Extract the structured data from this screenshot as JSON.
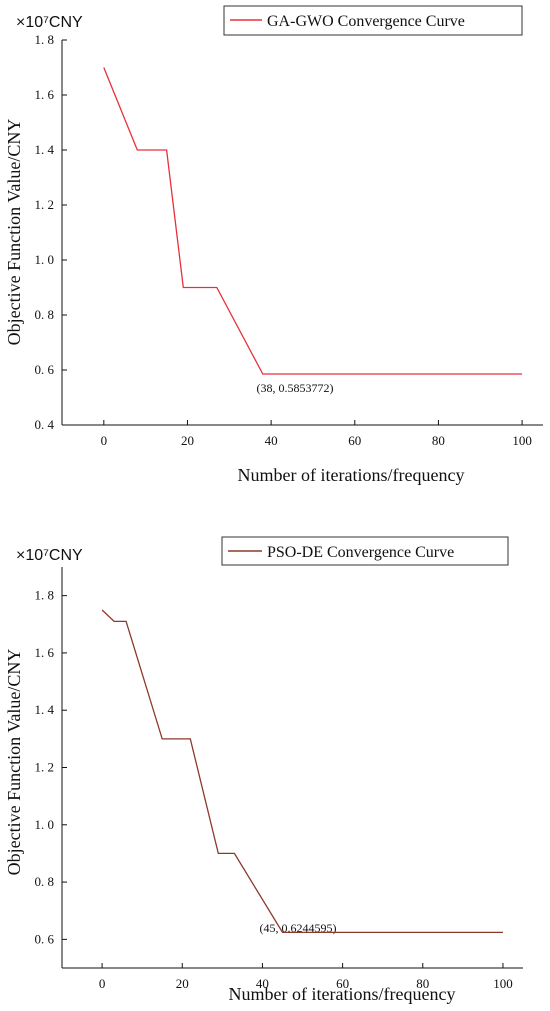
{
  "chart_data": [
    {
      "type": "line",
      "unit_label": "×10⁷CNY",
      "legend": "GA-GWO Convergence Curve",
      "series_color": "#e8303a",
      "xlabel": "Number of iterations/frequency",
      "ylabel": "Objective Function Value/CNY",
      "xlim": [
        -10,
        105
      ],
      "ylim": [
        0.4,
        1.8
      ],
      "x_ticks": [
        0,
        20,
        40,
        60,
        80,
        100
      ],
      "x_tick_labels": [
        "0",
        "20",
        "40",
        "60",
        "80",
        "100"
      ],
      "y_ticks": [
        0.4,
        0.6,
        0.8,
        1.0,
        1.2,
        1.4,
        1.6,
        1.8
      ],
      "y_tick_labels": [
        "0. 4",
        "0. 6",
        "0. 8",
        "1. 0",
        "1. 2",
        "1. 4",
        "1. 6",
        "1. 8"
      ],
      "series": [
        {
          "name": "GA-GWO Convergence Curve",
          "x": [
            0,
            8,
            15,
            19,
            27,
            38,
            100
          ],
          "y": [
            1.7,
            1.4,
            1.4,
            0.9,
            0.9,
            0.5853772,
            0.5853772
          ]
        }
      ],
      "annotation": {
        "text": "(38, 0.5853772)",
        "x": 38,
        "y": 0.5853772
      }
    },
    {
      "type": "line",
      "unit_label": "×10⁷CNY",
      "legend": "PSO-DE  Convergence Curve",
      "series_color": "#8b3a2a",
      "xlabel": "Number of iterations/frequency",
      "ylabel": "Objective Function Value/CNY",
      "xlim": [
        -10,
        105
      ],
      "ylim": [
        0.5,
        1.9
      ],
      "x_ticks": [
        0,
        20,
        40,
        60,
        80,
        100
      ],
      "x_tick_labels": [
        "0",
        "20",
        "40",
        "60",
        "80",
        "100"
      ],
      "y_ticks": [
        0.6,
        0.8,
        1.0,
        1.2,
        1.4,
        1.6,
        1.8
      ],
      "y_tick_labels": [
        "0. 6",
        "0. 8",
        "1. 0",
        "1. 2",
        "1. 4",
        "1. 6",
        "1. 8"
      ],
      "series": [
        {
          "name": "PSO-DE  Convergence Curve",
          "x": [
            0,
            3,
            6,
            15,
            22,
            29,
            33,
            45,
            100
          ],
          "y": [
            1.75,
            1.71,
            1.71,
            1.3,
            1.3,
            0.9,
            0.9,
            0.6244595,
            0.6244595
          ]
        }
      ],
      "annotation": {
        "text": "(45, 0.6244595)",
        "x": 45,
        "y": 0.6244595
      }
    }
  ]
}
